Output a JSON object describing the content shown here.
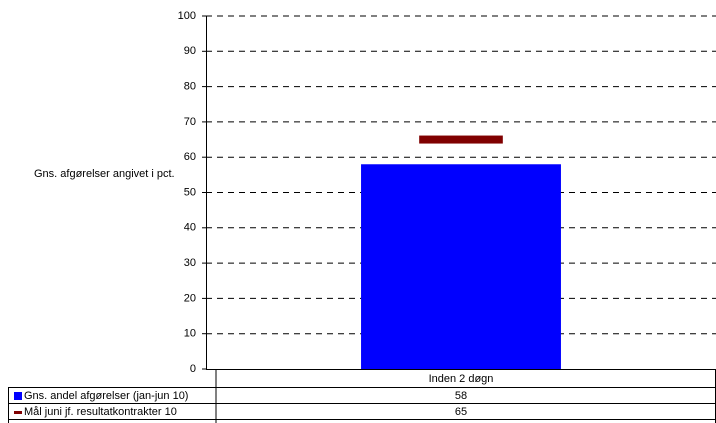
{
  "chart_data": {
    "type": "bar",
    "y_label": "Gns. afgørelser angivet i pct.",
    "categories": [
      "Inden 2 døgn"
    ],
    "series": [
      {
        "name": "Gns. andel afgørelser (jan-jun 10)",
        "color": "#0000ff",
        "style": "bar",
        "values": [
          58
        ]
      },
      {
        "name": "Mål juni jf. resultatkontrakter 10",
        "color": "#800000",
        "style": "marker",
        "values": [
          65
        ]
      }
    ],
    "ylim": [
      0,
      100
    ],
    "yticks": [
      0,
      10,
      20,
      30,
      40,
      50,
      60,
      70,
      80,
      90,
      100
    ],
    "grid": true,
    "data_table": true
  }
}
